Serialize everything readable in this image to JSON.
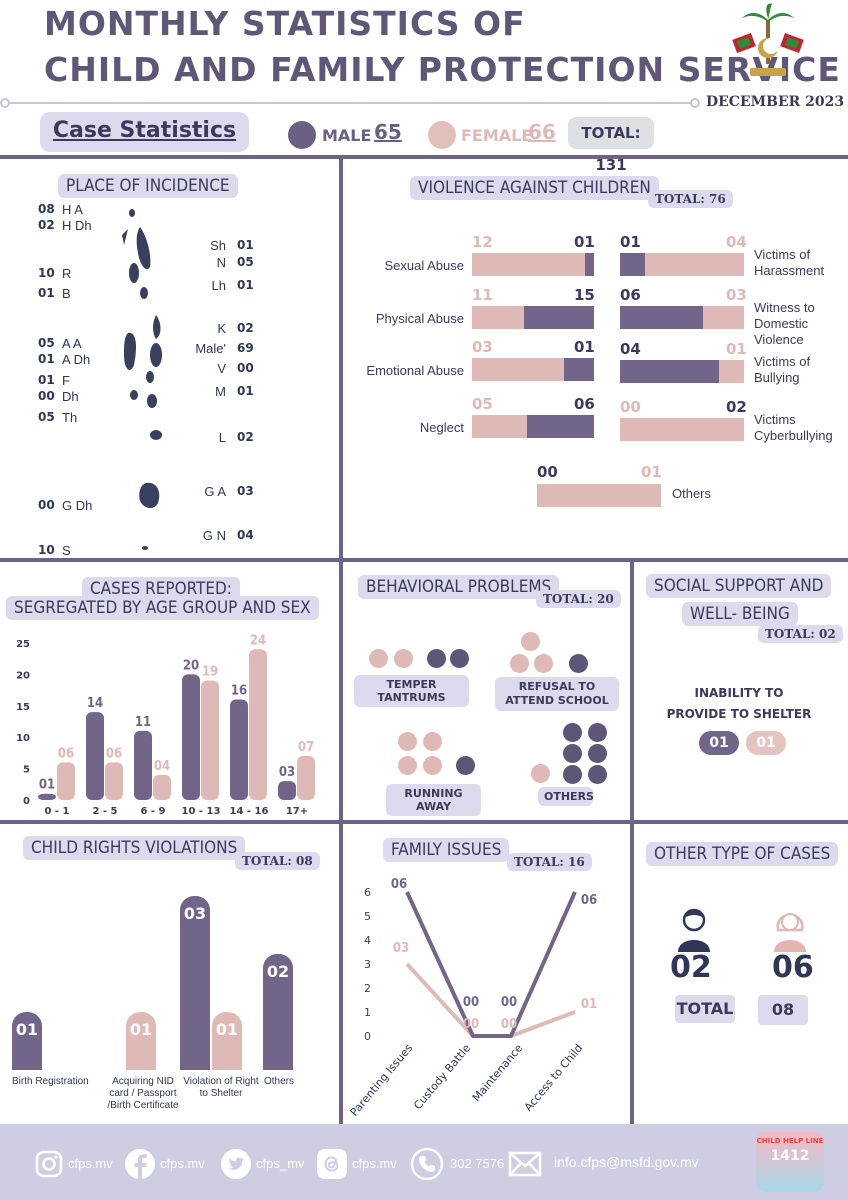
{
  "header": {
    "title_line1": "MONTHLY STATISTICS OF",
    "title_line2": "CHILD AND FAMILY PROTECTION SERVICE",
    "date": "DECEMBER 2023"
  },
  "case_statistics": {
    "title": "Case Statistics",
    "male_label": "MALE",
    "male_value": "65",
    "female_label": "FEMALE",
    "female_value": "66",
    "total_label": "TOTAL: 131"
  },
  "place_of_incidence": {
    "title": "PLACE OF INCIDENCE",
    "left": [
      {
        "count": "08",
        "atoll": "H A"
      },
      {
        "count": "02",
        "atoll": "H Dh"
      },
      {
        "count": "10",
        "atoll": "R"
      },
      {
        "count": "01",
        "atoll": "B"
      },
      {
        "count": "05",
        "atoll": "A A"
      },
      {
        "count": "01",
        "atoll": "A Dh"
      },
      {
        "count": "01",
        "atoll": "F"
      },
      {
        "count": "00",
        "atoll": "Dh"
      },
      {
        "count": "05",
        "atoll": "Th"
      },
      {
        "count": "00",
        "atoll": "G Dh"
      },
      {
        "count": "10",
        "atoll": "S"
      }
    ],
    "right": [
      {
        "atoll": "Sh",
        "count": "01"
      },
      {
        "atoll": "N",
        "count": "05"
      },
      {
        "atoll": "Lh",
        "count": "01"
      },
      {
        "atoll": "K",
        "count": "02"
      },
      {
        "atoll": "Male'",
        "count": "69"
      },
      {
        "atoll": "V",
        "count": "00"
      },
      {
        "atoll": "M",
        "count": "01"
      },
      {
        "atoll": "L",
        "count": "02"
      },
      {
        "atoll": "G A",
        "count": "03"
      },
      {
        "atoll": "G N",
        "count": "04"
      }
    ]
  },
  "violence": {
    "title": "VIOLENCE AGAINST CHILDREN",
    "total": "TOTAL: 76",
    "left_items": [
      {
        "label": "Sexual Abuse",
        "female": "12",
        "male": "01",
        "f": 12,
        "m": 1
      },
      {
        "label": "Physical Abuse",
        "female": "11",
        "male": "15",
        "f": 11,
        "m": 15
      },
      {
        "label": "Emotional Abuse",
        "female": "03",
        "male": "01",
        "f": 3,
        "m": 1
      },
      {
        "label": "Neglect",
        "female": "05",
        "male": "06",
        "f": 5,
        "m": 6
      }
    ],
    "right_items": [
      {
        "label1": "Victims of",
        "label2": "Harassment",
        "label3": "",
        "male": "01",
        "female": "04",
        "m": 1,
        "f": 4
      },
      {
        "label1": "Witness to",
        "label2": "Domestic",
        "label3": "Violence",
        "male": "06",
        "female": "03",
        "m": 6,
        "f": 3
      },
      {
        "label1": "Victims of",
        "label2": "Bullying",
        "label3": "",
        "male": "04",
        "female": "01",
        "m": 4,
        "f": 1
      },
      {
        "label1": "Victims",
        "label2": "Cyberbullying",
        "label3": "",
        "male": "00",
        "female": "02",
        "m": 0,
        "f": 2
      }
    ],
    "others": {
      "label": "Others",
      "male": "00",
      "female": "01",
      "m": 0,
      "f": 1
    }
  },
  "age_group": {
    "title_line1": "CASES REPORTED:",
    "title_line2": "SEGREGATED BY AGE GROUP AND SEX"
  },
  "chart_data": {
    "type": "bar",
    "title": "CASES REPORTED: SEGREGATED BY AGE GROUP AND SEX",
    "categories": [
      "0 - 1",
      "2 - 5",
      "6 - 9",
      "10 - 13",
      "14 - 16",
      "17+"
    ],
    "series": [
      {
        "name": "Male",
        "values": [
          1,
          14,
          11,
          20,
          16,
          3
        ],
        "labels": [
          "01",
          "14",
          "11",
          "20",
          "16",
          "03"
        ]
      },
      {
        "name": "Female",
        "values": [
          6,
          6,
          4,
          19,
          24,
          7
        ],
        "labels": [
          "06",
          "06",
          "04",
          "19",
          "24",
          "07"
        ]
      }
    ],
    "yticks": [
      "0",
      "5",
      "10",
      "15",
      "20",
      "25"
    ],
    "ylim": [
      0,
      25
    ],
    "xlabel": "",
    "ylabel": ""
  },
  "behavioral": {
    "title": "BEHAVIORAL PROBLEMS",
    "total": "TOTAL: 20",
    "items": [
      {
        "label": "TEMPER TANTRUMS"
      },
      {
        "label": "REFUSAL TO ATTEND SCHOOL"
      },
      {
        "label": "RUNNING AWAY"
      },
      {
        "label": "OTHERS"
      }
    ]
  },
  "social": {
    "title_line1": "SOCIAL SUPPORT AND",
    "title_line2": "WELL- BEING",
    "total": "TOTAL: 02",
    "item_line1": "INABILITY TO",
    "item_line2": "PROVIDE TO SHELTER",
    "male": "01",
    "female": "01"
  },
  "child_rights": {
    "title": "CHILD RIGHTS VIOLATIONS",
    "total": "TOTAL: 08",
    "items": [
      {
        "label1": "Birth Registration",
        "label2": "",
        "label3": "",
        "male": "01",
        "female": "",
        "m": 1,
        "f": 0
      },
      {
        "label1": "Acquiring NID",
        "label2": "card / Passport",
        "label3": "/Birth Certificate",
        "male": "",
        "female": "01",
        "m": 0,
        "f": 1
      },
      {
        "label1": "Violation of Right",
        "label2": "to Shelter",
        "label3": "",
        "male": "03",
        "female": "01",
        "m": 3,
        "f": 1
      },
      {
        "label1": "Others",
        "label2": "",
        "label3": "",
        "male": "02",
        "female": "",
        "m": 2,
        "f": 0
      }
    ]
  },
  "family": {
    "title": "FAMILY ISSUES",
    "total": "TOTAL: 16",
    "categories": [
      "Parenting Issues",
      "Custody Battle",
      "Maintenance",
      "Access to Child"
    ],
    "male": [
      6,
      0,
      0,
      6
    ],
    "female": [
      3,
      0,
      0,
      1
    ],
    "male_labels": [
      "06",
      "00",
      "00",
      "06"
    ],
    "female_labels": [
      "03",
      "00",
      "00",
      "01"
    ],
    "yticks": [
      "0",
      "1",
      "2",
      "3",
      "4",
      "5",
      "6"
    ]
  },
  "other_cases": {
    "title": "OTHER TYPE OF CASES",
    "male": "02",
    "female": "06",
    "total_label": "TOTAL",
    "total_value": "08"
  },
  "footer": {
    "instagram": "cfps.mv",
    "facebook": "cfps.mv",
    "twitter": "cfps_mv",
    "threads": "cfps.mv",
    "phone": "302 7576",
    "email": "info.cfps@msfd.gov.mv",
    "helpline_top": "CHILD HELP LINE",
    "helpline_number": "1412"
  },
  "colors": {
    "male": "#71658a",
    "female": "#dfb9b6",
    "accent": "#dcdaec",
    "line": "#6c6385"
  }
}
